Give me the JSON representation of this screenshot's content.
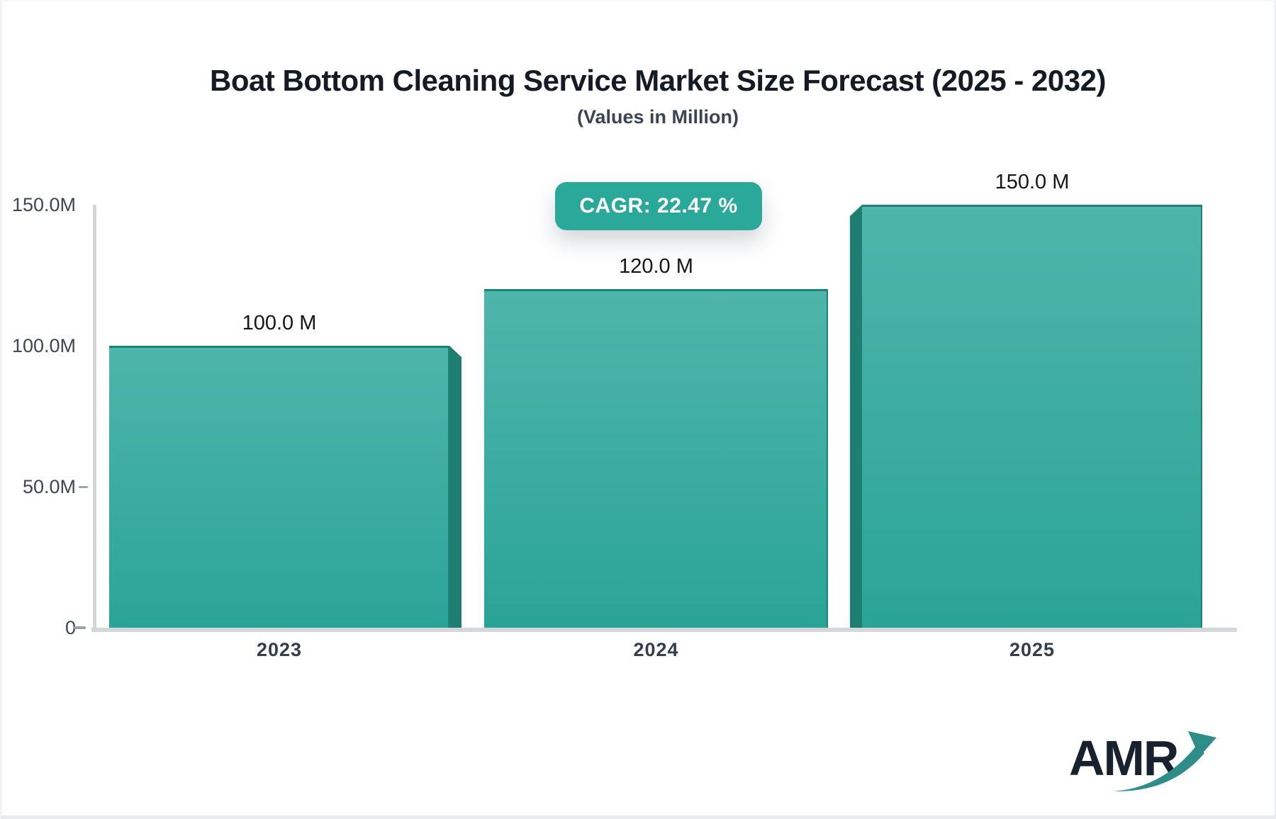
{
  "title": "Boat Bottom Cleaning Service Market Size Forecast (2025 - 2032)",
  "subtitle": "(Values in Million)",
  "badge": {
    "label": "CAGR: 22.47 %"
  },
  "logo": {
    "brand": "AMR"
  },
  "colors": {
    "accent_teal": "#2aa99b",
    "bar_top": "#4fb5ab",
    "bar_bottom": "#2aa497",
    "bar_side": "#1e7e71",
    "axis_gray": "#d3d6db",
    "logo_navy": "#18222e",
    "logo_arrow": "#2f8d89"
  },
  "chart_data": {
    "type": "bar",
    "title": "Boat Bottom Cleaning Service Market Size Forecast (2025 - 2032)",
    "subtitle": "(Values in Million)",
    "cagr_label": "CAGR: 22.47 %",
    "categories": [
      "2023",
      "2024",
      "2025"
    ],
    "values": [
      100.0,
      120.0,
      150.0
    ],
    "value_labels": [
      "100.0 M",
      "120.0 M",
      "150.0 M"
    ],
    "y_tick_labels": [
      "150.0M",
      "100.0M",
      "50.0M",
      "0"
    ],
    "ylim": [
      0,
      150
    ],
    "xlabel": "",
    "ylabel": "",
    "grid": false,
    "legend": false,
    "bar_style": "3d-extruded-teal-gradient"
  }
}
